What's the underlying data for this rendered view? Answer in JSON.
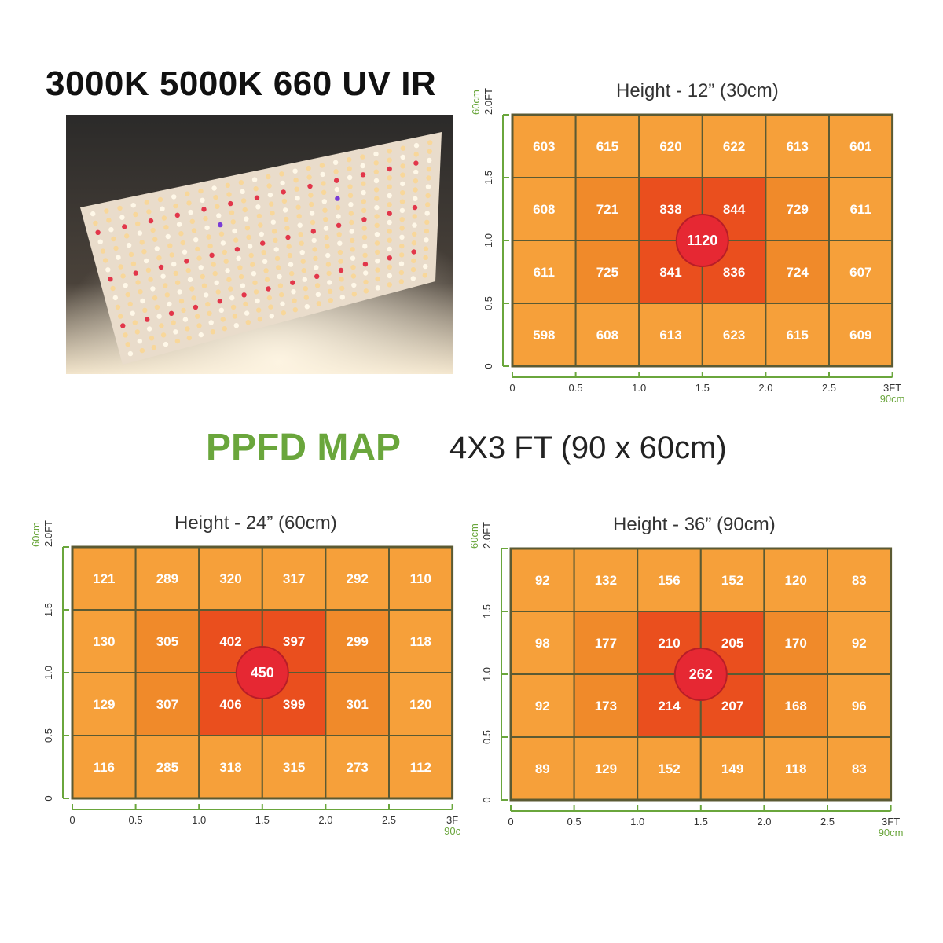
{
  "header": {
    "spec": "3000K 5000K 660 UV IR"
  },
  "ppfd": {
    "title": "PPFD MAP",
    "subtitle": "4X3 FT (90 x 60cm)"
  },
  "colors": {
    "green": "#6aa63c",
    "orange_outer": "#f6a03a",
    "orange_mid": "#f08a2a",
    "red_center": "#ea4f1e",
    "center_dot": "#e62833",
    "grid_line": "#5b5a33"
  },
  "chart_data": [
    {
      "type": "heatmap",
      "title": "Height - 12” (30cm)",
      "x_ticks": [
        "0",
        "0.5",
        "1.0",
        "1.5",
        "2.0",
        "2.5",
        "3FT"
      ],
      "x_unit": "90cm",
      "y_ticks": [
        "0",
        "0.5",
        "1.0",
        "1.5",
        "2.0FT"
      ],
      "y_unit": "60cm",
      "values": [
        [
          603,
          615,
          620,
          622,
          613,
          601
        ],
        [
          608,
          721,
          838,
          844,
          729,
          611
        ],
        [
          611,
          725,
          841,
          836,
          724,
          607
        ],
        [
          598,
          608,
          613,
          623,
          615,
          609
        ]
      ],
      "center": 1120
    },
    {
      "type": "heatmap",
      "title": "Height - 24” (60cm)",
      "x_ticks": [
        "0",
        "0.5",
        "1.0",
        "1.5",
        "2.0",
        "2.5",
        "3F"
      ],
      "x_unit": "90c",
      "y_ticks": [
        "0",
        "0.5",
        "1.0",
        "1.5",
        "2.0FT"
      ],
      "y_unit": "60cm",
      "values": [
        [
          121,
          289,
          320,
          317,
          292,
          110
        ],
        [
          130,
          305,
          402,
          397,
          299,
          118
        ],
        [
          129,
          307,
          406,
          399,
          301,
          120
        ],
        [
          116,
          285,
          318,
          315,
          273,
          112
        ]
      ],
      "center": 450
    },
    {
      "type": "heatmap",
      "title": "Height - 36” (90cm)",
      "x_ticks": [
        "0",
        "0.5",
        "1.0",
        "1.5",
        "2.0",
        "2.5",
        "3FT"
      ],
      "x_unit": "90cm",
      "y_ticks": [
        "0",
        "0.5",
        "1.0",
        "1.5",
        "2.0FT"
      ],
      "y_unit": "60cm",
      "values": [
        [
          92,
          132,
          156,
          152,
          120,
          83
        ],
        [
          98,
          177,
          210,
          205,
          170,
          92
        ],
        [
          92,
          173,
          214,
          207,
          168,
          96
        ],
        [
          89,
          129,
          152,
          149,
          118,
          83
        ]
      ],
      "center": 262
    }
  ]
}
